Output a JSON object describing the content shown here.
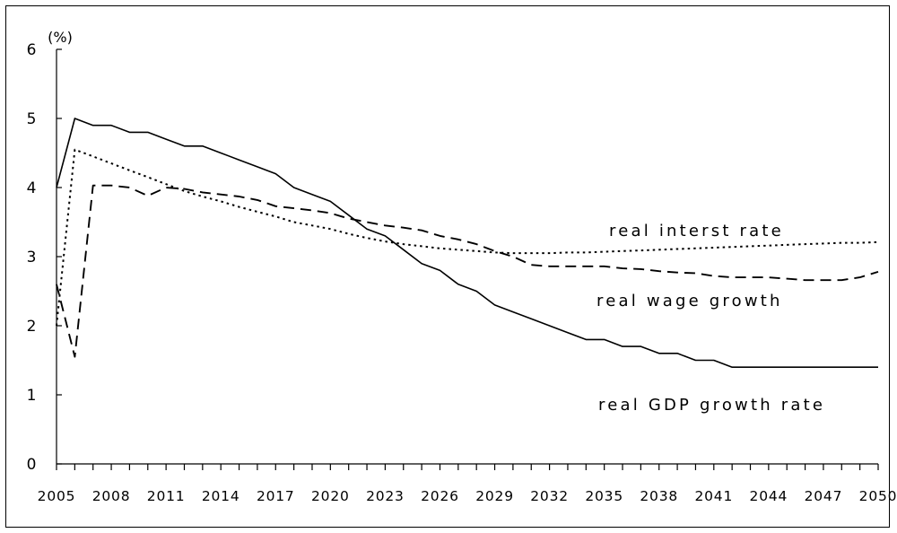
{
  "chart_data": {
    "type": "line",
    "title": "",
    "xlabel": "",
    "ylabel": "(%)",
    "xlim": [
      2005,
      2050
    ],
    "ylim": [
      0,
      6
    ],
    "yticks": [
      "0",
      "1",
      "2",
      "3",
      "4",
      "5",
      "6"
    ],
    "xtick_labels": [
      "2005",
      "2008",
      "2011",
      "2014",
      "2017",
      "2020",
      "2023",
      "2026",
      "2029",
      "2032",
      "2035",
      "2038",
      "2041",
      "2044",
      "2047",
      "2050"
    ],
    "grid": false,
    "legend": "inline labels",
    "x": [
      2005,
      2006,
      2007,
      2008,
      2009,
      2010,
      2011,
      2012,
      2013,
      2014,
      2015,
      2016,
      2017,
      2018,
      2019,
      2020,
      2021,
      2022,
      2023,
      2024,
      2025,
      2026,
      2027,
      2028,
      2029,
      2030,
      2031,
      2032,
      2033,
      2034,
      2035,
      2036,
      2037,
      2038,
      2039,
      2040,
      2041,
      2042,
      2043,
      2044,
      2045,
      2046,
      2047,
      2048,
      2049,
      2050
    ],
    "series": [
      {
        "name": "real GDP growth rate",
        "style": "solid",
        "values": [
          4.0,
          5.0,
          4.9,
          4.9,
          4.8,
          4.8,
          4.7,
          4.6,
          4.6,
          4.5,
          4.4,
          4.3,
          4.2,
          4.0,
          3.9,
          3.8,
          3.6,
          3.4,
          3.3,
          3.1,
          2.9,
          2.8,
          2.6,
          2.5,
          2.3,
          2.2,
          2.1,
          2.0,
          1.9,
          1.8,
          1.8,
          1.7,
          1.7,
          1.6,
          1.6,
          1.5,
          1.5,
          1.4,
          1.4,
          1.4,
          1.4,
          1.4,
          1.4,
          1.4,
          1.4,
          1.4
        ]
      },
      {
        "name": "real interst rate",
        "style": "dotted",
        "values": [
          2.0,
          4.55,
          4.45,
          4.35,
          4.25,
          4.15,
          4.05,
          3.95,
          3.87,
          3.8,
          3.72,
          3.65,
          3.58,
          3.5,
          3.45,
          3.4,
          3.33,
          3.27,
          3.22,
          3.18,
          3.15,
          3.12,
          3.1,
          3.08,
          3.06,
          3.05,
          3.05,
          3.05,
          3.06,
          3.06,
          3.07,
          3.08,
          3.09,
          3.1,
          3.11,
          3.12,
          3.13,
          3.14,
          3.15,
          3.16,
          3.17,
          3.18,
          3.19,
          3.2,
          3.2,
          3.21
        ]
      },
      {
        "name": "real wage growth",
        "style": "dashed",
        "values": [
          2.6,
          1.55,
          4.03,
          4.03,
          4.0,
          3.88,
          4.0,
          3.98,
          3.93,
          3.9,
          3.87,
          3.82,
          3.73,
          3.7,
          3.67,
          3.63,
          3.55,
          3.5,
          3.45,
          3.42,
          3.38,
          3.3,
          3.25,
          3.18,
          3.08,
          3.0,
          2.88,
          2.86,
          2.86,
          2.86,
          2.86,
          2.83,
          2.82,
          2.79,
          2.77,
          2.76,
          2.72,
          2.7,
          2.7,
          2.7,
          2.68,
          2.66,
          2.66,
          2.66,
          2.7,
          2.78
        ]
      }
    ]
  }
}
